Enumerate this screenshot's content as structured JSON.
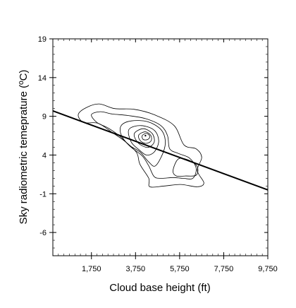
{
  "chart_data": {
    "type": "contour",
    "xlabel": "Cloud base height (ft)",
    "ylabel": "Sky radiometric temeprature (ºC)",
    "x_ticks": [
      1750,
      3750,
      5750,
      7750,
      9750
    ],
    "x_tick_labels": [
      "1,750",
      "3,750",
      "5,750",
      "7,750",
      "9,750"
    ],
    "y_ticks": [
      -6,
      -1,
      4,
      9,
      14,
      19
    ],
    "y_tick_labels": [
      "-6",
      "-1",
      "4",
      "9",
      "14",
      "19"
    ],
    "xlim": [
      0,
      9750
    ],
    "ylim": [
      -9,
      19
    ],
    "regression_line": {
      "x": [
        0,
        9750
      ],
      "y": [
        9.7,
        -0.5
      ]
    },
    "peak": {
      "x": 4200,
      "y": 6.5
    },
    "secondary_peak": {
      "x": 6200,
      "y": 2.0
    },
    "contours": [
      [
        [
          1150,
          9.2
        ],
        [
          1500,
          10.1
        ],
        [
          2100,
          10.6
        ],
        [
          2800,
          10.0
        ],
        [
          3700,
          9.9
        ],
        [
          4600,
          9.2
        ],
        [
          5500,
          7.8
        ],
        [
          5950,
          5.3
        ],
        [
          6500,
          4.8
        ],
        [
          6750,
          3.7
        ],
        [
          6550,
          2.0
        ],
        [
          6850,
          0.4
        ],
        [
          6550,
          -0.1
        ],
        [
          5800,
          0.2
        ],
        [
          5050,
          0.0
        ],
        [
          4400,
          -0.1
        ],
        [
          4350,
          1.0
        ],
        [
          3950,
          2.8
        ],
        [
          3800,
          4.3
        ],
        [
          3300,
          5.7
        ],
        [
          2700,
          6.9
        ],
        [
          2050,
          8.1
        ],
        [
          1400,
          8.2
        ],
        [
          1150,
          9.2
        ]
      ],
      [
        [
          1750,
          9.2
        ],
        [
          2150,
          9.6
        ],
        [
          2700,
          9.3
        ],
        [
          3400,
          9.1
        ],
        [
          4200,
          8.7
        ],
        [
          4900,
          7.8
        ],
        [
          5200,
          6.5
        ],
        [
          5300,
          4.8
        ],
        [
          5700,
          4.2
        ],
        [
          6200,
          3.6
        ],
        [
          6500,
          2.3
        ],
        [
          6350,
          1.0
        ],
        [
          5900,
          1.0
        ],
        [
          5450,
          1.1
        ],
        [
          4950,
          1.0
        ],
        [
          4600,
          1.2
        ],
        [
          4350,
          2.6
        ],
        [
          4050,
          3.9
        ],
        [
          3550,
          5.0
        ],
        [
          3050,
          6.4
        ],
        [
          2500,
          7.5
        ],
        [
          2000,
          8.2
        ],
        [
          1750,
          9.2
        ]
      ],
      [
        [
          3100,
          7.8
        ],
        [
          3550,
          8.4
        ],
        [
          4300,
          8.3
        ],
        [
          4900,
          7.3
        ],
        [
          5100,
          5.9
        ],
        [
          5000,
          4.3
        ],
        [
          4650,
          2.6
        ],
        [
          4350,
          3.1
        ],
        [
          3950,
          4.4
        ],
        [
          3450,
          5.3
        ],
        [
          3100,
          6.6
        ],
        [
          3100,
          7.8
        ]
      ],
      [
        [
          3450,
          7.3
        ],
        [
          4000,
          7.8
        ],
        [
          4600,
          7.2
        ],
        [
          4800,
          5.8
        ],
        [
          4600,
          4.4
        ],
        [
          4250,
          4.0
        ],
        [
          3900,
          4.7
        ],
        [
          3550,
          5.7
        ],
        [
          3450,
          7.3
        ]
      ],
      [
        [
          3700,
          6.8
        ],
        [
          4100,
          7.4
        ],
        [
          4500,
          6.8
        ],
        [
          4600,
          5.7
        ],
        [
          4350,
          5.0
        ],
        [
          4050,
          5.2
        ],
        [
          3800,
          5.8
        ],
        [
          3700,
          6.8
        ]
      ],
      [
        [
          3900,
          6.6
        ],
        [
          4200,
          7.0
        ],
        [
          4450,
          6.5
        ],
        [
          4450,
          5.8
        ],
        [
          4200,
          5.5
        ],
        [
          3950,
          5.9
        ],
        [
          3900,
          6.6
        ]
      ],
      [
        [
          4050,
          6.5
        ],
        [
          4250,
          6.8
        ],
        [
          4400,
          6.4
        ],
        [
          4300,
          6.0
        ],
        [
          4100,
          6.0
        ],
        [
          4050,
          6.5
        ]
      ],
      [
        [
          5450,
          2.0
        ],
        [
          5700,
          3.5
        ],
        [
          6200,
          3.3
        ],
        [
          6550,
          2.5
        ],
        [
          6500,
          1.4
        ],
        [
          6000,
          1.3
        ],
        [
          5600,
          1.3
        ],
        [
          5450,
          2.0
        ]
      ]
    ]
  }
}
